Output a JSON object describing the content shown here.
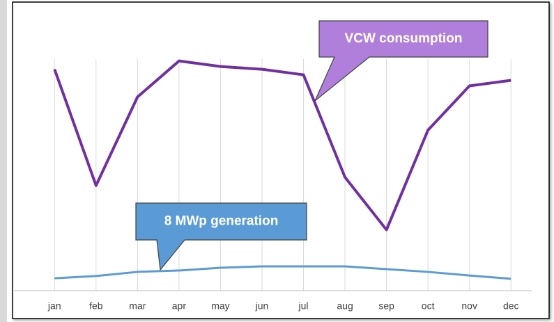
{
  "chart_data": {
    "type": "line",
    "categories": [
      "jan",
      "feb",
      "mar",
      "apr",
      "may",
      "jun",
      "jul",
      "aug",
      "sep",
      "oct",
      "nov",
      "dec"
    ],
    "series": [
      {
        "name": "VCW consumption",
        "color": "#7030a0",
        "values": [
          80,
          38,
          70,
          83,
          81,
          80,
          78,
          41,
          22,
          58,
          74,
          76
        ]
      },
      {
        "name": "8 MWp generation",
        "color": "#5b9bd5",
        "values": [
          4.5,
          5.3,
          6.8,
          7.3,
          8.3,
          8.8,
          8.8,
          8.8,
          7.8,
          6.8,
          5.5,
          4.3
        ]
      }
    ],
    "ylim": [
      0,
      100
    ],
    "grid": true
  }
}
